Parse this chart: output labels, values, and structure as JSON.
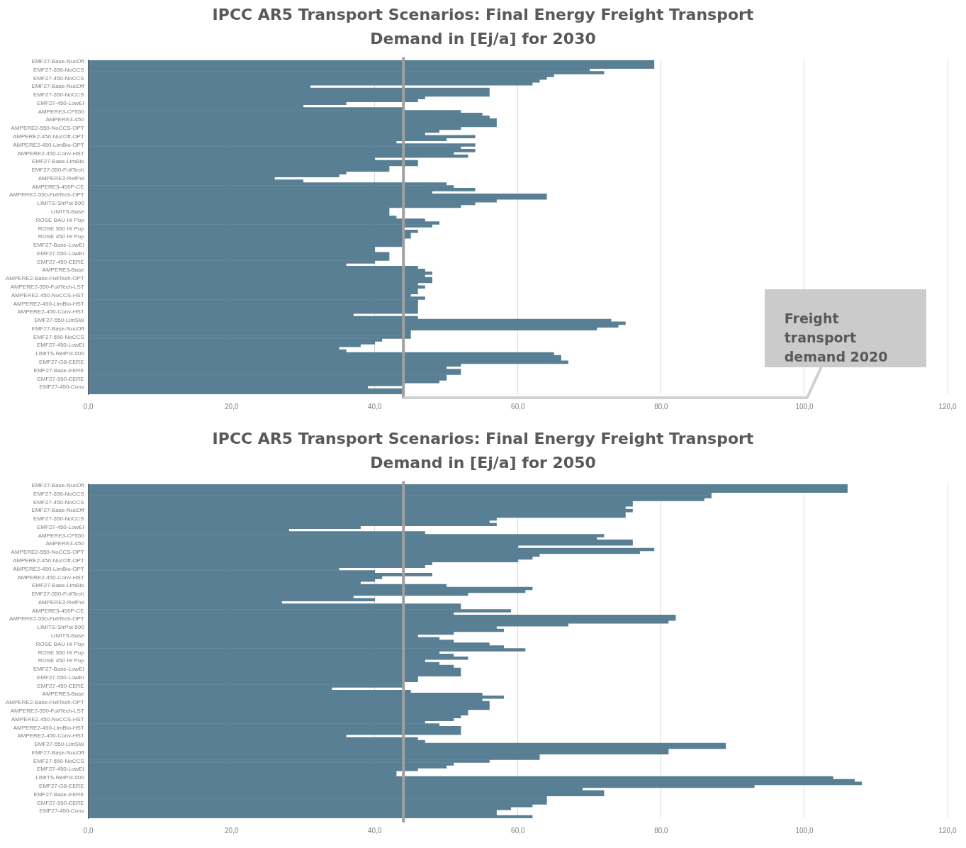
{
  "chart_data": [
    {
      "type": "bar",
      "orientation": "horizontal",
      "title": "IPCC AR5 Transport Scenarios: Final Energy Freight Transport Demand in [Ej/a] for 2030",
      "categories": [
        "EMF27-Base-NucOff",
        null,
        null,
        "EMF27-550-NoCCS",
        null,
        null,
        "EMF27-450-NoCCS",
        null,
        null,
        "EMF27-Base-NucOff",
        null,
        null,
        "EMF27-550-NoCCS",
        null,
        null,
        "EMF27-450-LowEI",
        null,
        null,
        "AMPERE3-CF550",
        null,
        null,
        "AMPERE3-450",
        null,
        null,
        "AMPERE2-550-NoCCS-OPT",
        null,
        null,
        "AMPERE2-450-NucOff-OPT",
        null,
        null,
        "AMPERE2-450-LimBio-OPT",
        null,
        null,
        "AMPERE2-450-Conv-HST",
        null,
        null,
        "EMF27-Base-LimBio",
        null,
        null,
        "EMF27-550-FullTech",
        null,
        null,
        "AMPERE3-RefPol",
        null,
        null,
        "AMPERE3-450P-CE",
        null,
        null,
        "AMPERE2-550-FullTech-OPT",
        null,
        null,
        "LIMITS-StrPol-500",
        null,
        null,
        "LIMITS-Base",
        null,
        null,
        "ROSE BAU HI Pop",
        null,
        null,
        "ROSE 550 HI Pop",
        null,
        null,
        "ROSE 450 HI Pop",
        null,
        null,
        "EMF27-Base-LowEI",
        null,
        null,
        "EMF27-550-LowEI",
        null,
        null,
        "EMF27-450-EERE",
        null,
        null,
        "AMPERE3-Base",
        null,
        null,
        "AMPERE2-Base-FullTech-OPT",
        null,
        null,
        "AMPERE2-550-FullTech-LST",
        null,
        null,
        "AMPERE2-450-NoCCS-HST",
        null,
        null,
        "AMPERE2-450-LimBio-HST",
        null,
        null,
        "AMPERE2-450-Conv-HST",
        null,
        null,
        "EMF27-550-LimSW",
        null,
        null,
        "EMF27-Base-NucOff",
        null,
        null,
        "EMF27-550-NoCCS",
        null,
        null,
        "EMF27-450-LowEI",
        null,
        null,
        "LIMITS-RefPol-500",
        null,
        null,
        "EMF27-G8-EERE",
        null,
        null,
        "EMF27-Base-EERE",
        null,
        null,
        "EMF27-550-EERE",
        null,
        null,
        "EMF27-450-Conv",
        null,
        null
      ],
      "values": [
        79,
        79,
        79,
        70,
        72,
        65,
        64,
        63,
        62,
        31,
        56,
        56,
        56,
        47,
        46,
        36,
        30,
        44,
        52,
        55,
        56,
        57,
        57,
        57,
        52,
        49,
        47,
        54,
        50,
        43,
        54,
        52,
        54,
        51,
        53,
        40,
        46,
        46,
        42,
        42,
        36,
        35,
        26,
        30,
        50,
        51,
        54,
        48,
        64,
        64,
        57,
        54,
        52,
        42,
        42,
        42,
        43,
        47,
        49,
        48,
        44,
        46,
        45,
        45,
        44,
        44,
        44,
        40,
        40,
        42,
        42,
        42,
        40,
        36,
        46,
        47,
        48,
        47,
        48,
        48,
        46,
        47,
        46,
        46,
        45,
        47,
        46,
        46,
        46,
        46,
        46,
        37,
        46,
        73,
        75,
        74,
        71,
        45,
        45,
        45,
        41,
        40,
        38,
        35,
        36,
        65,
        66,
        66,
        67,
        52,
        50,
        52,
        52,
        50,
        50,
        49,
        44,
        39,
        44,
        44
      ],
      "color": "#587f93",
      "xlim": [
        0,
        120
      ],
      "xticks": [
        {
          "value": 0,
          "label": "0,0"
        },
        {
          "value": 20,
          "label": "20,0"
        },
        {
          "value": 40,
          "label": "40,0"
        },
        {
          "value": 60,
          "label": "60,0"
        },
        {
          "value": 80,
          "label": "80,0"
        },
        {
          "value": 100,
          "label": "100,0"
        },
        {
          "value": 120,
          "label": "120,0"
        }
      ],
      "grid": "x",
      "legend": false,
      "ref_lines": [
        {
          "axis": "x",
          "value": 44,
          "label": "Freight transport demand 2020",
          "color": "#a0a0a0"
        }
      ]
    },
    {
      "type": "bar",
      "orientation": "horizontal",
      "title": "IPCC AR5 Transport Scenarios: Final Energy Freight Transport Demand in [Ej/a] for 2050",
      "categories": [
        "EMF27-Base-NucOff",
        null,
        null,
        "EMF27-550-NoCCS",
        null,
        null,
        "EMF27-450-NoCCS",
        null,
        null,
        "EMF27-Base-NucOff",
        null,
        null,
        "EMF27-550-NoCCS",
        null,
        null,
        "EMF27-450-LowEI",
        null,
        null,
        "AMPERE3-CF550",
        null,
        null,
        "AMPERE3-450",
        null,
        null,
        "AMPERE2-550-NoCCS-OPT",
        null,
        null,
        "AMPERE2-450-NucOff-OPT",
        null,
        null,
        "AMPERE2-450-LimBio-OPT",
        null,
        null,
        "AMPERE2-450-Conv-HST",
        null,
        null,
        "EMF27-Base-LimBio",
        null,
        null,
        "EMF27-550-FullTech",
        null,
        null,
        "AMPERE3-RefPol",
        null,
        null,
        "AMPERE3-450P-CE",
        null,
        null,
        "AMPERE2-550-FullTech-OPT",
        null,
        null,
        "LIMITS-StrPol-500",
        null,
        null,
        "LIMITS-Base",
        null,
        null,
        "ROSE BAU HI Pop",
        null,
        null,
        "ROSE 550 HI Pop",
        null,
        null,
        "ROSE 450 HI Pop",
        null,
        null,
        "EMF27-Base-LowEI",
        null,
        null,
        "EMF27-550-LowEI",
        null,
        null,
        "EMF27-450-EERE",
        null,
        null,
        "AMPERE3-Base",
        null,
        null,
        "AMPERE2-Base-FullTech-OPT",
        null,
        null,
        "AMPERE2-550-FullTech-LST",
        null,
        null,
        "AMPERE2-450-NoCCS-HST",
        null,
        null,
        "AMPERE2-450-LimBio-HST",
        null,
        null,
        "AMPERE2-450-Conv-HST",
        null,
        null,
        "EMF27-550-LimSW",
        null,
        null,
        "EMF27-Base-NucOff",
        null,
        null,
        "EMF27-550-NoCCS",
        null,
        null,
        "EMF27-450-LowEI",
        null,
        null,
        "LIMITS-RefPol-500",
        null,
        null,
        "EMF27-G8-EERE",
        null,
        null,
        "EMF27-Base-EERE",
        null,
        null,
        "EMF27-550-EERE",
        null,
        null,
        "EMF27-450-Conv",
        null,
        null
      ],
      "values": [
        106,
        106,
        106,
        87,
        87,
        86,
        76,
        76,
        75,
        76,
        75,
        75,
        57,
        56,
        57,
        38,
        28,
        47,
        72,
        71,
        76,
        76,
        60,
        79,
        77,
        63,
        62,
        60,
        48,
        47,
        35,
        40,
        48,
        41,
        40,
        38,
        50,
        62,
        61,
        53,
        37,
        40,
        27,
        52,
        52,
        59,
        51,
        82,
        82,
        81,
        67,
        57,
        58,
        51,
        46,
        49,
        51,
        56,
        58,
        61,
        49,
        51,
        53,
        47,
        49,
        51,
        52,
        52,
        52,
        46,
        46,
        44,
        44,
        34,
        45,
        55,
        58,
        55,
        56,
        56,
        56,
        53,
        53,
        52,
        51,
        47,
        49,
        52,
        52,
        52,
        36,
        46,
        47,
        89,
        89,
        81,
        81,
        63,
        63,
        56,
        51,
        50,
        46,
        43,
        43,
        104,
        107,
        108,
        93,
        69,
        72,
        72,
        64,
        64,
        64,
        62,
        59,
        57,
        57,
        62
      ],
      "color": "#587f93",
      "xlim": [
        0,
        120
      ],
      "xticks": [
        {
          "value": 0,
          "label": "0,0"
        },
        {
          "value": 20,
          "label": "20,0"
        },
        {
          "value": 40,
          "label": "40,0"
        },
        {
          "value": 60,
          "label": "60,0"
        },
        {
          "value": 80,
          "label": "80,0"
        },
        {
          "value": 100,
          "label": "100,0"
        },
        {
          "value": 120,
          "label": "120,0"
        }
      ],
      "grid": "x",
      "legend": false,
      "ref_lines": [
        {
          "axis": "x",
          "value": 44,
          "color": "#a0a0a0"
        }
      ]
    }
  ]
}
